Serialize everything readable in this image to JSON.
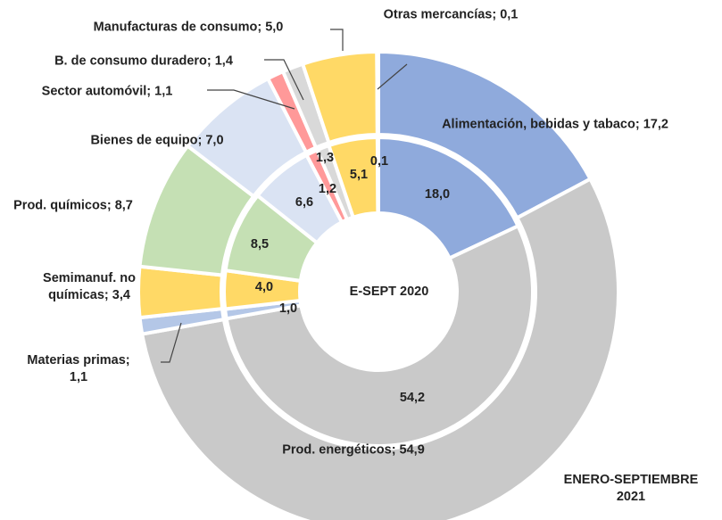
{
  "chart_data": {
    "type": "donut",
    "colors": [
      "#8faadc",
      "#c9c9c9",
      "#b4c7e7",
      "#ffd966",
      "#c5e0b4",
      "#dae3f3",
      "#ff9999",
      "#d9d9d9",
      "#ffd966",
      "#b4c7e7"
    ],
    "series": [
      {
        "name": "ENERO-SEPTIEMBRE 2021",
        "values": [
          17.2,
          54.9,
          1.1,
          3.4,
          8.7,
          7.0,
          1.1,
          1.4,
          5.0,
          0.1
        ],
        "value_labels": [
          "Alimentación, bebidas y tabaco; 17,2",
          "Prod. energéticos; 54,9",
          "Materias primas; 1,1",
          "Semimanuf. no químicas; 3,4",
          "Prod. químicos; 8,7",
          "Bienes de equipo; 7,0",
          "Sector automóvil; 1,1",
          "B. de consumo duradero; 1,4",
          "Manufacturas de consumo; 5,0",
          "Otras mercancías; 0,1"
        ]
      },
      {
        "name": "E-SEPT 2020",
        "values": [
          18.0,
          54.2,
          1.0,
          4.0,
          8.5,
          6.6,
          1.2,
          1.3,
          5.1,
          0.1
        ],
        "value_labels": [
          "18,0",
          "54,2",
          "1,0",
          "4,0",
          "8,5",
          "6,6",
          "1,2",
          "1,3",
          "5,1",
          "0,1"
        ]
      }
    ]
  }
}
